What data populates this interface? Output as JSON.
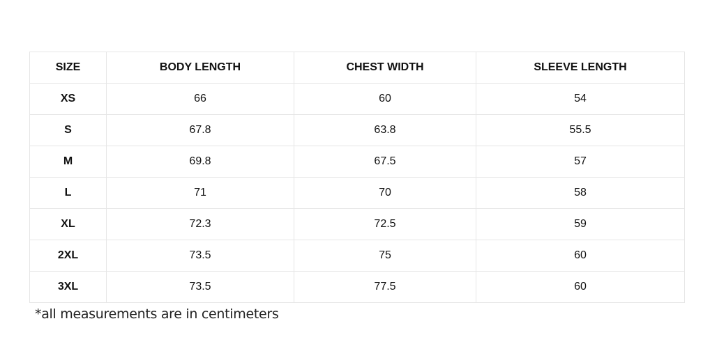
{
  "table": {
    "headers": [
      "SIZE",
      "BODY LENGTH",
      "CHEST WIDTH",
      "SLEEVE LENGTH"
    ],
    "rows": [
      [
        "XS",
        "66",
        "60",
        "54"
      ],
      [
        "S",
        "67.8",
        "63.8",
        "55.5"
      ],
      [
        "M",
        "69.8",
        "67.5",
        "57"
      ],
      [
        "L",
        "71",
        "70",
        "58"
      ],
      [
        "XL",
        "72.3",
        "72.5",
        "59"
      ],
      [
        "2XL",
        "73.5",
        "75",
        "60"
      ],
      [
        "3XL",
        "73.5",
        "77.5",
        "60"
      ]
    ]
  },
  "note": "*all measurements are in centimeters"
}
